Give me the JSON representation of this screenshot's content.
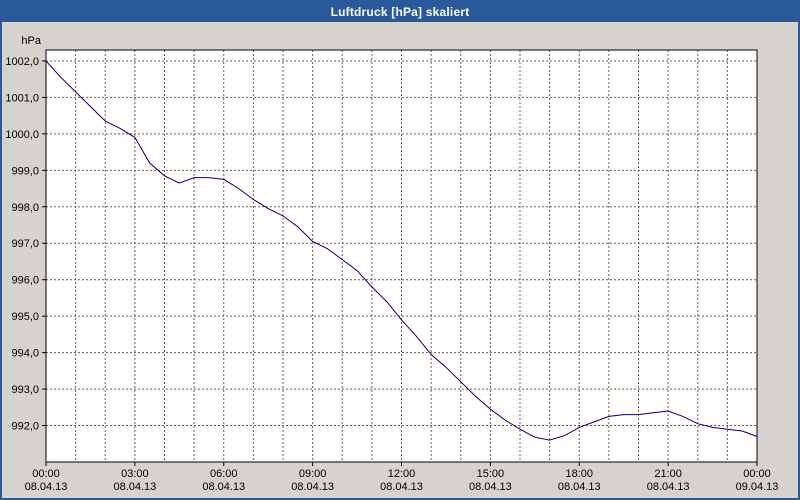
{
  "window": {
    "title": "Luftdruck [hPa] skaliert"
  },
  "chart_data": {
    "type": "line",
    "title": "Luftdruck [hPa] skaliert",
    "ylabel_unit": "hPa",
    "line_color": "#000080",
    "grid_dashed": true,
    "legend": "none",
    "xlim": [
      0,
      24
    ],
    "ylim": [
      991.0,
      1002.3
    ],
    "colors": {
      "plot_bg": "#ffffff",
      "grid": "#606060",
      "axis": "#000000",
      "text": "#000000",
      "window_bg": "#d6d3ce",
      "titlebar_bg": "#29599b",
      "titlebar_text": "#ffffff"
    },
    "y_ticks": [
      {
        "value": 1002,
        "label": "1002,0"
      },
      {
        "value": 1001,
        "label": "1001,0"
      },
      {
        "value": 1000,
        "label": "1000,0"
      },
      {
        "value": 999,
        "label": "999,0"
      },
      {
        "value": 998,
        "label": "998,0"
      },
      {
        "value": 997,
        "label": "997,0"
      },
      {
        "value": 996,
        "label": "996,0"
      },
      {
        "value": 995,
        "label": "995,0"
      },
      {
        "value": 994,
        "label": "994,0"
      },
      {
        "value": 993,
        "label": "993,0"
      },
      {
        "value": 992,
        "label": "992,0"
      }
    ],
    "x_ticks": [
      {
        "hour": 0,
        "time": "00:00",
        "date": "08.04.13"
      },
      {
        "hour": 3,
        "time": "03:00",
        "date": "08.04.13"
      },
      {
        "hour": 6,
        "time": "06:00",
        "date": "08.04.13"
      },
      {
        "hour": 9,
        "time": "09:00",
        "date": "08.04.13"
      },
      {
        "hour": 12,
        "time": "12:00",
        "date": "08.04.13"
      },
      {
        "hour": 15,
        "time": "15:00",
        "date": "08.04.13"
      },
      {
        "hour": 18,
        "time": "18:00",
        "date": "08.04.13"
      },
      {
        "hour": 21,
        "time": "21:00",
        "date": "08.04.13"
      },
      {
        "hour": 24,
        "time": "00:00",
        "date": "09.04.13"
      }
    ],
    "series": [
      {
        "name": "Luftdruck",
        "x_step_hours": 0.5,
        "values": [
          1002.0,
          1001.55,
          1001.15,
          1000.75,
          1000.35,
          1000.15,
          999.9,
          999.2,
          998.85,
          998.65,
          998.8,
          998.8,
          998.75,
          998.5,
          998.2,
          997.95,
          997.75,
          997.45,
          997.05,
          996.85,
          996.55,
          996.25,
          995.8,
          995.4,
          994.9,
          994.45,
          993.95,
          993.6,
          993.2,
          992.8,
          992.45,
          992.15,
          991.9,
          991.68,
          991.6,
          991.72,
          991.95,
          992.1,
          992.25,
          992.3,
          992.3,
          992.35,
          992.4,
          992.25,
          992.05,
          991.95,
          991.9,
          991.85,
          991.7
        ]
      }
    ]
  }
}
